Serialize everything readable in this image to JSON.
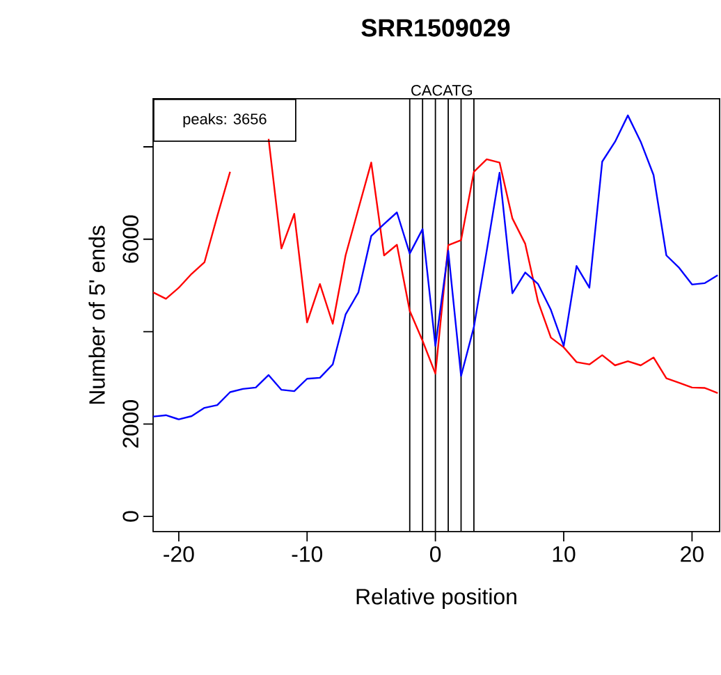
{
  "chart_data": {
    "type": "line",
    "title": "SRR1509029",
    "xlabel": "Relative position",
    "ylabel": "Number of 5' ends",
    "x": [
      -22,
      -21,
      -20,
      -19,
      -18,
      -17,
      -16,
      -15,
      -14,
      -13,
      -12,
      -11,
      -10,
      -9,
      -8,
      -7,
      -6,
      -5,
      -4,
      -3,
      -2,
      -1,
      0,
      1,
      2,
      3,
      4,
      5,
      6,
      7,
      8,
      9,
      10,
      11,
      12,
      13,
      14,
      15,
      16,
      17,
      18,
      19,
      20,
      21,
      22
    ],
    "series": [
      {
        "color": "#ff0000",
        "values": [
          4850,
          4710,
          4950,
          5250,
          5500,
          6500,
          7460,
          null,
          null,
          8170,
          5800,
          6550,
          4200,
          5030,
          4170,
          5650,
          6660,
          7660,
          5650,
          5880,
          4450,
          3800,
          3090,
          5870,
          5980,
          7460,
          7730,
          7660,
          6450,
          5900,
          4650,
          3870,
          3660,
          3340,
          3290,
          3490,
          3270,
          3360,
          3270,
          3440,
          2990,
          2890,
          2790,
          2780,
          2670
        ]
      },
      {
        "color": "#0000ff",
        "values": [
          2160,
          2190,
          2100,
          2170,
          2350,
          2410,
          2690,
          2760,
          2790,
          3060,
          2740,
          2710,
          2980,
          3000,
          3290,
          4370,
          4850,
          6070,
          6330,
          6580,
          5690,
          6220,
          3690,
          5750,
          3040,
          4100,
          5750,
          7440,
          4830,
          5280,
          5030,
          4470,
          3690,
          5420,
          4950,
          7680,
          8110,
          8680,
          8110,
          7390,
          5650,
          5380,
          5020,
          5050,
          5220
        ]
      }
    ],
    "xlim": [
      -22,
      22.15
    ],
    "ylim": [
      -330,
      9040
    ],
    "xticks": [
      -20,
      -10,
      0,
      10,
      20
    ],
    "yticks": [
      0,
      2000,
      {
        "value": 4000,
        "label": null
      },
      6000,
      {
        "value": 8000,
        "label": null
      }
    ],
    "ref_lines": [
      {
        "axis": "x",
        "value": -2,
        "color": "#000000"
      },
      {
        "axis": "x",
        "value": -1,
        "color": "#000000"
      },
      {
        "axis": "x",
        "value": 0,
        "color": "#000000"
      },
      {
        "axis": "x",
        "value": 1,
        "color": "#000000"
      },
      {
        "axis": "x",
        "value": 2,
        "color": "#000000"
      },
      {
        "axis": "x",
        "value": 3,
        "color": "#000000"
      }
    ],
    "annotations": [
      "CACATG",
      "peaks:  3656"
    ],
    "marker": "none",
    "line_style": "solid"
  }
}
